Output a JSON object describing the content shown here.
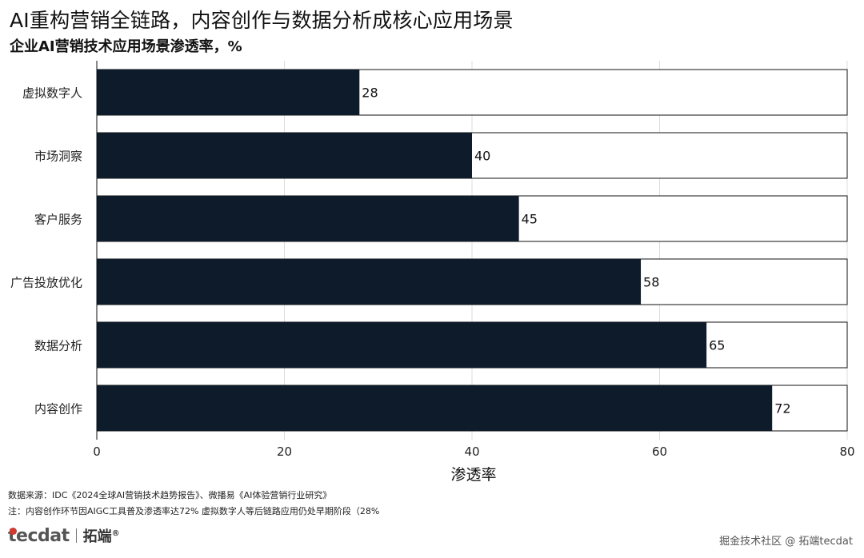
{
  "header": {
    "title": "AI重构营销全链路，内容创作与数据分析成核心应用场景",
    "subtitle": "企业AI营销技术应用场景渗透率，%"
  },
  "chart_data": {
    "type": "bar",
    "orientation": "horizontal",
    "categories": [
      "虚拟数字人",
      "市场洞察",
      "客户服务",
      "广告投放优化",
      "数据分析",
      "内容创作"
    ],
    "values": [
      28,
      40,
      45,
      58,
      65,
      72
    ],
    "data_labels": [
      "28",
      "40",
      "45",
      "58",
      "65",
      "72"
    ],
    "xlim": [
      0,
      80
    ],
    "xticks": [
      "0",
      "20",
      "40",
      "60",
      "80"
    ],
    "xlabel": "渗透率",
    "ylabel": "",
    "grid": true,
    "background_track": true,
    "colors": {
      "bar": "#0d1b2a",
      "track": "#ffffff",
      "track_border": "#111111",
      "grid": "#dddddd"
    }
  },
  "footer": {
    "source": "数据来源：IDC《2024全球AI营销技术趋势报告》、微播易《AI体验营销行业研究》",
    "note": "注：内容创作环节因AIGC工具普及渗透率达72%  虚拟数字人等后链路应用仍处早期阶段（28%",
    "logo_en": "tecdat",
    "logo_cn": "拓端",
    "logo_mark": "®",
    "watermark": "掘金技术社区 @ 拓端tecdat"
  }
}
